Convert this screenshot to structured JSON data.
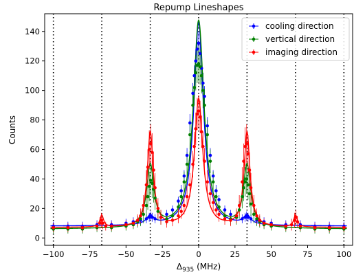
{
  "chart_data": {
    "type": "scatter",
    "title": "Repump Lineshapes",
    "xlabel_main": "Δ",
    "xlabel_sub": "935",
    "xlabel_unit": " (MHz)",
    "ylabel": "Counts",
    "xlim": [
      -106,
      106
    ],
    "ylim": [
      -5,
      152
    ],
    "xticks": [
      -100,
      -75,
      -50,
      -25,
      0,
      25,
      50,
      75,
      100
    ],
    "xtick_labels": [
      "−100",
      "−75",
      "−50",
      "−25",
      "0",
      "25",
      "50",
      "75",
      "100"
    ],
    "yticks": [
      0,
      20,
      40,
      60,
      80,
      100,
      120,
      140
    ],
    "ytick_labels": [
      "0",
      "20",
      "40",
      "60",
      "80",
      "100",
      "120",
      "140"
    ],
    "vlines": [
      -100,
      -66.7,
      -33.3,
      0,
      33.3,
      66.7,
      100
    ],
    "grid": false,
    "legend_position": "top-right",
    "series": [
      {
        "name": "cooling direction",
        "color": "#0000ff",
        "fit_params": {
          "baseline": 8,
          "center_amp": 138,
          "center_hwhm": 4,
          "side_amp": 6,
          "side_hwhm": 3,
          "outer_amp": 0,
          "outer_hwhm": 2
        },
        "x": [
          -100,
          -90,
          -80,
          -70,
          -60,
          -50,
          -45,
          -40,
          -36,
          -34,
          -33,
          -32,
          -30,
          -26,
          -22,
          -18,
          -14,
          -12,
          -10,
          -8,
          -6,
          -4,
          -3,
          -2,
          -1,
          0,
          1,
          2,
          3,
          4,
          6,
          8,
          10,
          12,
          14,
          18,
          22,
          26,
          30,
          32,
          33,
          34,
          36,
          40,
          45,
          50,
          60,
          70,
          80,
          90,
          100
        ],
        "y": [
          8,
          8,
          8,
          9,
          9,
          10,
          11,
          12,
          13,
          14,
          15,
          14,
          13,
          14,
          16,
          19,
          25,
          32,
          42,
          56,
          78,
          98,
          110,
          120,
          128,
          132,
          125,
          115,
          105,
          96,
          76,
          56,
          42,
          32,
          26,
          19,
          16,
          14,
          13,
          14,
          15,
          14,
          13,
          12,
          11,
          10,
          9,
          9,
          8,
          8,
          8
        ],
        "err": [
          3,
          3,
          3,
          3,
          3,
          3,
          3,
          3,
          3,
          3,
          3,
          3,
          3,
          3,
          3,
          3,
          3,
          4,
          4,
          5,
          6,
          7,
          7,
          8,
          8,
          8,
          8,
          8,
          7,
          7,
          6,
          5,
          4,
          4,
          3,
          3,
          3,
          3,
          3,
          3,
          3,
          3,
          3,
          3,
          3,
          3,
          3,
          3,
          3,
          3,
          3
        ]
      },
      {
        "name": "vertical direction",
        "color": "#008000",
        "fit_params": {
          "baseline": 6,
          "center_amp": 141,
          "center_hwhm": 4.5,
          "side_amp": 42,
          "side_hwhm": 3,
          "outer_amp": 0,
          "outer_hwhm": 2
        },
        "x": [
          -100,
          -90,
          -80,
          -70,
          -60,
          -50,
          -45,
          -42,
          -40,
          -38,
          -36,
          -35,
          -34,
          -33,
          -32,
          -31,
          -30,
          -28,
          -26,
          -22,
          -18,
          -14,
          -12,
          -10,
          -8,
          -6,
          -4,
          -3,
          -2,
          -1,
          0,
          1,
          2,
          3,
          4,
          6,
          8,
          10,
          12,
          14,
          18,
          22,
          26,
          28,
          30,
          31,
          32,
          33,
          34,
          35,
          36,
          38,
          40,
          42,
          45,
          50,
          60,
          70,
          80,
          90,
          100
        ],
        "y": [
          6,
          6,
          6,
          7,
          7,
          8,
          9,
          11,
          13,
          16,
          22,
          28,
          35,
          39,
          37,
          33,
          27,
          18,
          14,
          13,
          15,
          21,
          28,
          38,
          50,
          70,
          90,
          102,
          112,
          117,
          118,
          116,
          110,
          100,
          90,
          70,
          52,
          38,
          28,
          21,
          15,
          13,
          14,
          19,
          28,
          34,
          38,
          40,
          36,
          30,
          23,
          16,
          13,
          11,
          9,
          8,
          7,
          7,
          6,
          6,
          6
        ],
        "err": [
          3,
          3,
          3,
          3,
          3,
          3,
          3,
          4,
          5,
          6,
          8,
          9,
          10,
          10,
          10,
          9,
          8,
          6,
          5,
          4,
          4,
          5,
          6,
          7,
          8,
          10,
          11,
          12,
          12,
          12,
          12,
          12,
          12,
          12,
          11,
          10,
          8,
          7,
          6,
          5,
          4,
          4,
          5,
          6,
          8,
          9,
          10,
          10,
          10,
          9,
          8,
          6,
          5,
          4,
          3,
          3,
          3,
          3,
          3,
          3,
          3
        ]
      },
      {
        "name": "imaging direction",
        "color": "#ff0000",
        "fit_params": {
          "baseline": 7,
          "center_amp": 87,
          "center_hwhm": 3.5,
          "side_amp": 64,
          "side_hwhm": 2.5,
          "outer_amp": 8,
          "outer_hwhm": 1.5
        },
        "x": [
          -100,
          -90,
          -80,
          -70,
          -68,
          -67,
          -66,
          -64,
          -60,
          -50,
          -45,
          -42,
          -40,
          -38,
          -36,
          -35,
          -34,
          -33,
          -32,
          -31,
          -30,
          -28,
          -26,
          -22,
          -18,
          -14,
          -12,
          -10,
          -8,
          -6,
          -4,
          -3,
          -2,
          -1,
          0,
          1,
          2,
          3,
          4,
          6,
          8,
          10,
          12,
          14,
          18,
          22,
          26,
          28,
          30,
          31,
          32,
          33,
          34,
          35,
          36,
          38,
          40,
          42,
          45,
          50,
          60,
          64,
          66,
          67,
          68,
          70,
          80,
          90,
          100
        ],
        "y": [
          7,
          7,
          7,
          8,
          10,
          12,
          10,
          8,
          8,
          9,
          10,
          12,
          15,
          22,
          36,
          48,
          60,
          64,
          58,
          46,
          34,
          20,
          14,
          11,
          12,
          15,
          18,
          22,
          28,
          36,
          50,
          62,
          74,
          84,
          86,
          82,
          72,
          62,
          52,
          38,
          30,
          24,
          19,
          16,
          13,
          12,
          15,
          22,
          38,
          52,
          62,
          64,
          57,
          46,
          34,
          22,
          15,
          12,
          10,
          9,
          8,
          9,
          12,
          14,
          11,
          8,
          7,
          7,
          7
        ],
        "err": [
          3,
          3,
          3,
          3,
          4,
          5,
          4,
          3,
          3,
          3,
          3,
          4,
          5,
          7,
          10,
          12,
          13,
          13,
          13,
          12,
          10,
          7,
          5,
          4,
          4,
          5,
          5,
          6,
          7,
          8,
          9,
          10,
          11,
          11,
          11,
          11,
          11,
          10,
          9,
          8,
          7,
          6,
          5,
          5,
          4,
          4,
          5,
          7,
          10,
          12,
          13,
          13,
          13,
          12,
          10,
          7,
          5,
          4,
          3,
          3,
          3,
          4,
          5,
          5,
          4,
          3,
          3,
          3,
          3
        ]
      }
    ]
  }
}
